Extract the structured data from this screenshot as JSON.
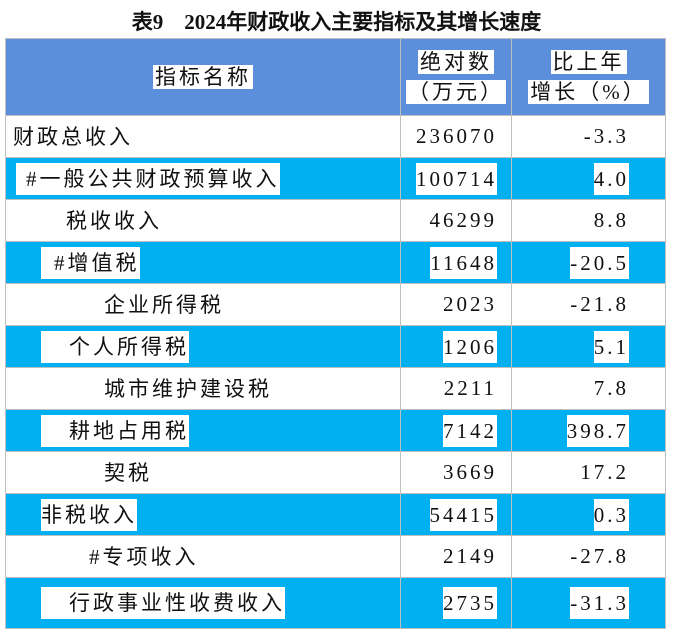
{
  "title": "表9　2024年财政收入主要指标及其增长速度",
  "table": {
    "header": [
      "指标名称",
      [
        "绝对数",
        "（万元）"
      ],
      [
        "比上年",
        "增长（%）"
      ]
    ],
    "rows": [
      [
        "财政总收入",
        "236070",
        "-3.3"
      ],
      [
        "#一般公共财政预算收入",
        "100714",
        "4.0"
      ],
      [
        "税收收入",
        "46299",
        "8.8"
      ],
      [
        "#增值税",
        "11648",
        "-20.5"
      ],
      [
        "企业所得税",
        "2023",
        "-21.8"
      ],
      [
        "个人所得税",
        "1206",
        "5.1"
      ],
      [
        "城市维护建设税",
        "2211",
        "7.8"
      ],
      [
        "耕地占用税",
        "7142",
        "398.7"
      ],
      [
        "契税",
        "3669",
        "17.2"
      ],
      [
        "非税收入",
        "54415",
        "0.3"
      ],
      [
        "#专项收入",
        "2149",
        "-27.8"
      ],
      [
        "行政事业性收费收入",
        "2735",
        "-31.3"
      ]
    ]
  }
}
